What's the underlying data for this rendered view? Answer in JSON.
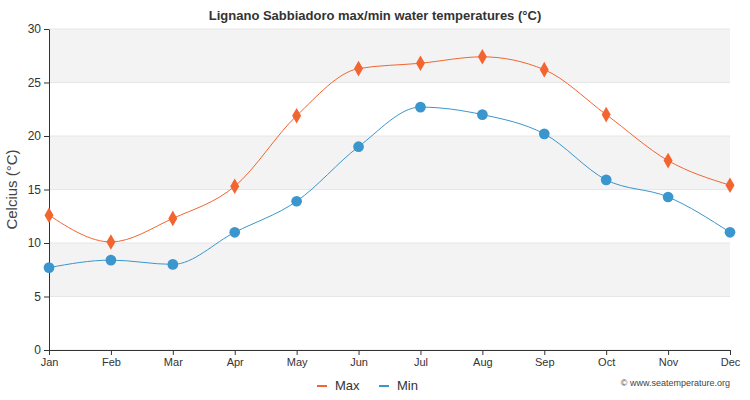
{
  "chart_data": {
    "type": "line",
    "title": "Lignano Sabbiadoro max/min water temperatures (°C)",
    "y_label": "Celcius (°C)",
    "annotations": [
      "© www.seatemperature.org"
    ],
    "categories": [
      "Jan",
      "Feb",
      "Mar",
      "Apr",
      "May",
      "Jun",
      "Jul",
      "Aug",
      "Sep",
      "Oct",
      "Nov",
      "Dec"
    ],
    "series": [
      {
        "name": "Max",
        "color": "#f26530",
        "marker": "diamond",
        "values": [
          12.6,
          10.1,
          12.3,
          15.3,
          21.9,
          26.3,
          26.8,
          27.4,
          26.2,
          22.0,
          17.7,
          15.4
        ]
      },
      {
        "name": "Min",
        "color": "#3a96cc",
        "marker": "circle",
        "values": [
          7.7,
          8.4,
          8.0,
          11.0,
          13.9,
          19.0,
          22.7,
          22.0,
          20.2,
          15.9,
          14.3,
          11.0
        ]
      }
    ],
    "ylim": [
      0,
      30
    ],
    "yticks": [
      0,
      5,
      10,
      15,
      20,
      25,
      30
    ],
    "grid": true,
    "legend": "bottom"
  }
}
